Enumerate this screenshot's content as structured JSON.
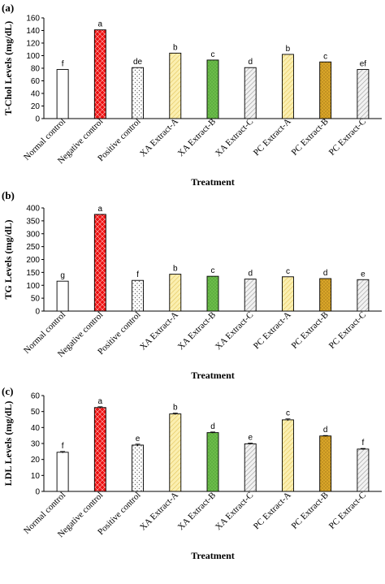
{
  "figure": {
    "categories": [
      "Normal control",
      "Negative control",
      "Positive control",
      "XA Extract-A",
      "XA Extract-B",
      "XA Extract-C",
      "PC Extract-A",
      "PC Extract-B",
      "PC Extract-C"
    ],
    "bar_styles": [
      {
        "fill": "#ffffff",
        "pattern": "none"
      },
      {
        "fill": "#ee1111",
        "pattern": "diamond"
      },
      {
        "fill": "#ffffff",
        "pattern": "dots"
      },
      {
        "fill": "#fbefb0",
        "pattern": "diagonal-gold"
      },
      {
        "fill": "#6cbc4a",
        "pattern": "green-texture"
      },
      {
        "fill": "#ececec",
        "pattern": "diagonal-gray"
      },
      {
        "fill": "#fbefb0",
        "pattern": "diagonal-gold"
      },
      {
        "fill": "#d9a528",
        "pattern": "brown-texture"
      },
      {
        "fill": "#ececec",
        "pattern": "diagonal-gray"
      }
    ]
  },
  "chart_data": [
    {
      "type": "bar",
      "panel_label": "(a)",
      "title": "",
      "xlabel": "Treatment",
      "ylabel": "T-Chol Levels (mg/dL)",
      "ylim": [
        0,
        160
      ],
      "yticks": [
        0,
        20,
        40,
        60,
        80,
        100,
        120,
        140,
        160
      ],
      "categories": [
        "Normal control",
        "Negative control",
        "Positive control",
        "XA Extract-A",
        "XA Extract-B",
        "XA Extract-C",
        "PC Extract-A",
        "PC Extract-B",
        "PC Extract-C"
      ],
      "values": [
        78,
        141,
        81,
        104,
        93,
        81,
        102,
        90,
        78
      ],
      "errors": [
        0,
        0,
        0,
        0,
        0,
        0,
        0,
        0,
        0
      ],
      "letters": [
        "f",
        "a",
        "de",
        "b",
        "c",
        "d",
        "b",
        "c",
        "ef"
      ],
      "grid": false
    },
    {
      "type": "bar",
      "panel_label": "(b)",
      "title": "",
      "xlabel": "Treatment",
      "ylabel": "TG Levels (mg/dL)",
      "ylim": [
        0,
        400
      ],
      "yticks": [
        0,
        50,
        100,
        150,
        200,
        250,
        300,
        350,
        400
      ],
      "categories": [
        "Normal control",
        "Negative control",
        "Positive control",
        "XA Extract-A",
        "XA Extract-B",
        "XA Extract-C",
        "PC Extract-A",
        "PC Extract-B",
        "PC Extract-C"
      ],
      "values": [
        116,
        375,
        119,
        143,
        135,
        124,
        133,
        126,
        122
      ],
      "errors": [
        0,
        0,
        0,
        0,
        0,
        0,
        0,
        0,
        0
      ],
      "letters": [
        "g",
        "a",
        "f",
        "b",
        "c",
        "d",
        "c",
        "d",
        "e"
      ],
      "grid": false
    },
    {
      "type": "bar",
      "panel_label": "(c)",
      "title": "",
      "xlabel": "Treatment",
      "ylabel": "LDL Levels (mg/dL)",
      "ylim": [
        0,
        60
      ],
      "yticks": [
        0,
        10,
        20,
        30,
        40,
        50,
        60
      ],
      "categories": [
        "Normal control",
        "Negative control",
        "Positive control",
        "XA Extract-A",
        "XA Extract-B",
        "XA Extract-C",
        "PC Extract-A",
        "PC Extract-B",
        "PC Extract-C"
      ],
      "values": [
        24.5,
        52.5,
        29.0,
        48.5,
        36.8,
        29.8,
        44.8,
        34.7,
        26.5
      ],
      "errors": [
        0.5,
        0.5,
        0.6,
        0.5,
        0.4,
        0.4,
        0.6,
        0.3,
        0.4
      ],
      "letters": [
        "f",
        "a",
        "e",
        "b",
        "d",
        "e",
        "c",
        "d",
        "f"
      ],
      "grid": false
    }
  ]
}
